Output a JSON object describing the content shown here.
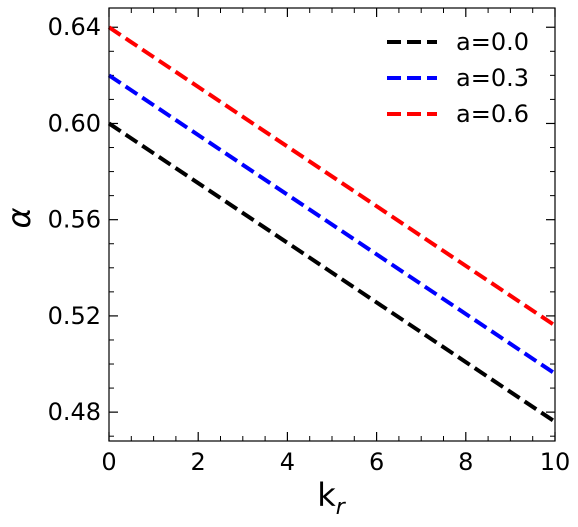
{
  "chart_data": {
    "type": "line",
    "xlabel_main": "k",
    "xlabel_sub": "r",
    "ylabel": "α",
    "xlim": [
      0,
      10
    ],
    "ylim": [
      0.468,
      0.648
    ],
    "x_ticks": [
      0,
      2,
      4,
      6,
      8,
      10
    ],
    "x_tick_labels": [
      "0",
      "2",
      "4",
      "6",
      "8",
      "10"
    ],
    "y_ticks": [
      0.48,
      0.52,
      0.56,
      0.6,
      0.64
    ],
    "y_tick_labels": [
      "0.48",
      "0.52",
      "0.56",
      "0.60",
      "0.64"
    ],
    "grid": false,
    "legend_position": "top-right",
    "series": [
      {
        "name": "a=0.0",
        "color": "#000000",
        "x": [
          0,
          10
        ],
        "y": [
          0.6,
          0.476
        ]
      },
      {
        "name": "a=0.3",
        "color": "#0000ff",
        "x": [
          0,
          10
        ],
        "y": [
          0.62,
          0.496
        ]
      },
      {
        "name": "a=0.6",
        "color": "#ff0000",
        "x": [
          0,
          10
        ],
        "y": [
          0.64,
          0.516
        ]
      }
    ]
  }
}
